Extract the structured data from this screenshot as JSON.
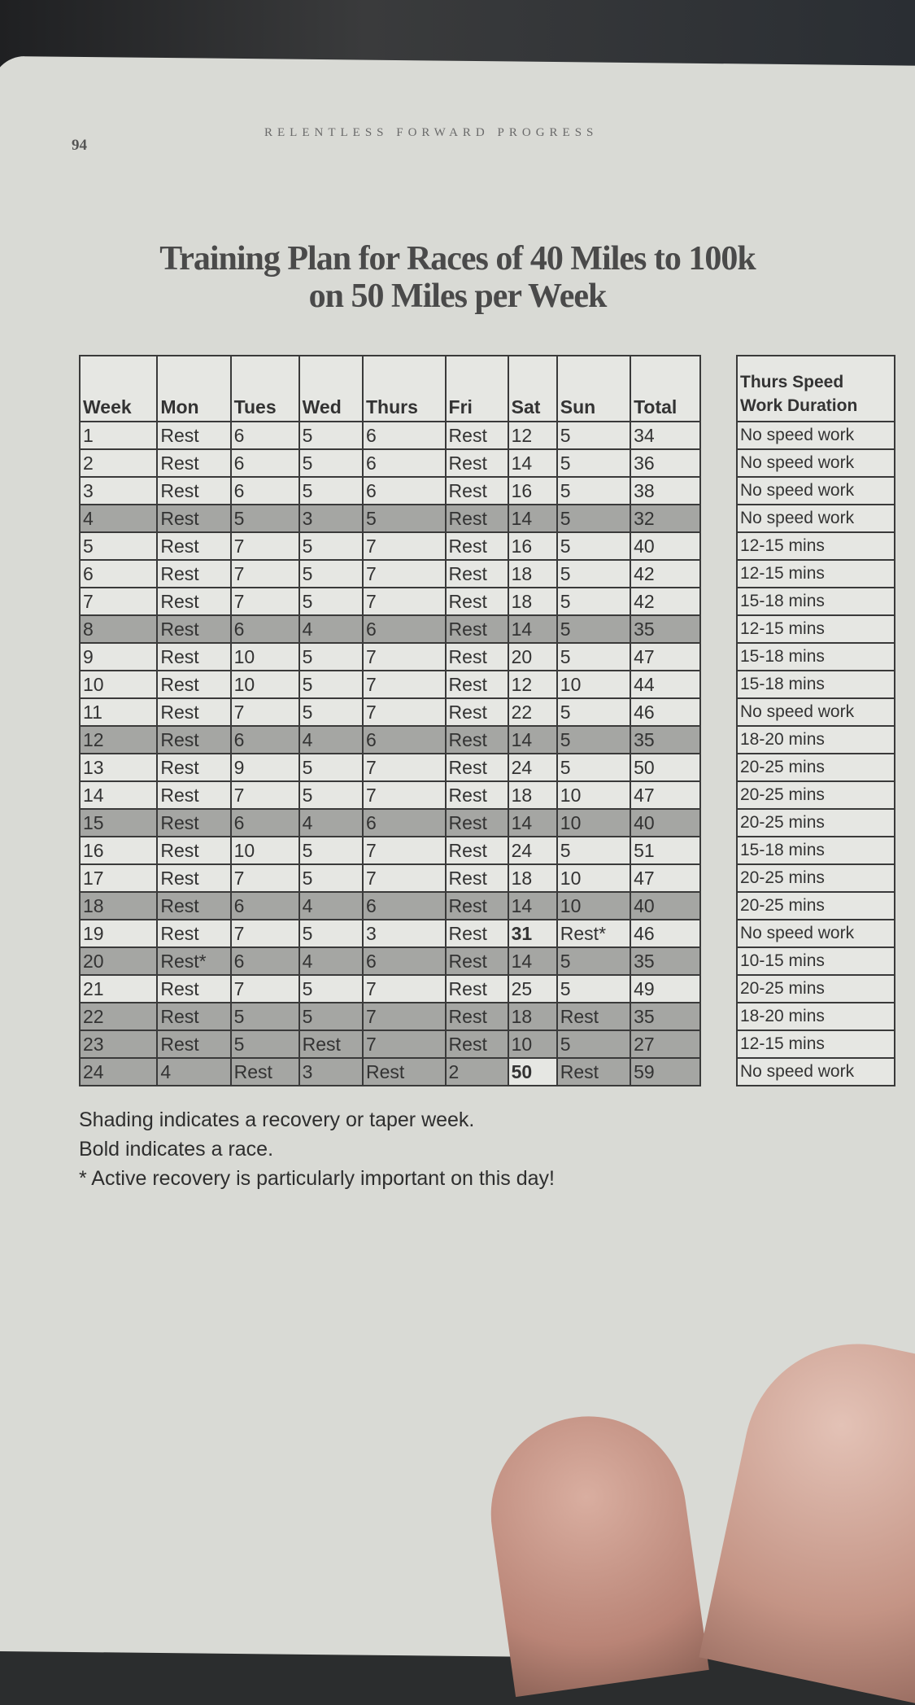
{
  "header": {
    "page_number": "94",
    "running_head": "RELENTLESS FORWARD PROGRESS"
  },
  "title": {
    "line1": "Training Plan for Races of 40 Miles to 100k",
    "line2": "on 50 Miles per Week"
  },
  "plan_table": {
    "columns": [
      "Week",
      "Mon",
      "Tues",
      "Wed",
      "Thurs",
      "Fri",
      "Sat",
      "Sun",
      "Total"
    ],
    "rows": [
      {
        "cells": [
          "1",
          "Rest",
          "6",
          "5",
          "6",
          "Rest",
          "12",
          "5",
          "34"
        ],
        "shaded": false
      },
      {
        "cells": [
          "2",
          "Rest",
          "6",
          "5",
          "6",
          "Rest",
          "14",
          "5",
          "36"
        ],
        "shaded": false
      },
      {
        "cells": [
          "3",
          "Rest",
          "6",
          "5",
          "6",
          "Rest",
          "16",
          "5",
          "38"
        ],
        "shaded": false
      },
      {
        "cells": [
          "4",
          "Rest",
          "5",
          "3",
          "5",
          "Rest",
          "14",
          "5",
          "32"
        ],
        "shaded": true
      },
      {
        "cells": [
          "5",
          "Rest",
          "7",
          "5",
          "7",
          "Rest",
          "16",
          "5",
          "40"
        ],
        "shaded": false
      },
      {
        "cells": [
          "6",
          "Rest",
          "7",
          "5",
          "7",
          "Rest",
          "18",
          "5",
          "42"
        ],
        "shaded": false
      },
      {
        "cells": [
          "7",
          "Rest",
          "7",
          "5",
          "7",
          "Rest",
          "18",
          "5",
          "42"
        ],
        "shaded": false
      },
      {
        "cells": [
          "8",
          "Rest",
          "6",
          "4",
          "6",
          "Rest",
          "14",
          "5",
          "35"
        ],
        "shaded": true
      },
      {
        "cells": [
          "9",
          "Rest",
          "10",
          "5",
          "7",
          "Rest",
          "20",
          "5",
          "47"
        ],
        "shaded": false
      },
      {
        "cells": [
          "10",
          "Rest",
          "10",
          "5",
          "7",
          "Rest",
          "12",
          "10",
          "44"
        ],
        "shaded": false
      },
      {
        "cells": [
          "11",
          "Rest",
          "7",
          "5",
          "7",
          "Rest",
          "22",
          "5",
          "46"
        ],
        "shaded": false
      },
      {
        "cells": [
          "12",
          "Rest",
          "6",
          "4",
          "6",
          "Rest",
          "14",
          "5",
          "35"
        ],
        "shaded": true
      },
      {
        "cells": [
          "13",
          "Rest",
          "9",
          "5",
          "7",
          "Rest",
          "24",
          "5",
          "50"
        ],
        "shaded": false
      },
      {
        "cells": [
          "14",
          "Rest",
          "7",
          "5",
          "7",
          "Rest",
          "18",
          "10",
          "47"
        ],
        "shaded": false
      },
      {
        "cells": [
          "15",
          "Rest",
          "6",
          "4",
          "6",
          "Rest",
          "14",
          "10",
          "40"
        ],
        "shaded": true
      },
      {
        "cells": [
          "16",
          "Rest",
          "10",
          "5",
          "7",
          "Rest",
          "24",
          "5",
          "51"
        ],
        "shaded": false
      },
      {
        "cells": [
          "17",
          "Rest",
          "7",
          "5",
          "7",
          "Rest",
          "18",
          "10",
          "47"
        ],
        "shaded": false
      },
      {
        "cells": [
          "18",
          "Rest",
          "6",
          "4",
          "6",
          "Rest",
          "14",
          "10",
          "40"
        ],
        "shaded": true
      },
      {
        "cells": [
          "19",
          "Rest",
          "7",
          "5",
          "3",
          "Rest",
          "31",
          "Rest*",
          "46"
        ],
        "shaded": false,
        "bold_col": 6
      },
      {
        "cells": [
          "20",
          "Rest*",
          "6",
          "4",
          "6",
          "Rest",
          "14",
          "5",
          "35"
        ],
        "shaded": true
      },
      {
        "cells": [
          "21",
          "Rest",
          "7",
          "5",
          "7",
          "Rest",
          "25",
          "5",
          "49"
        ],
        "shaded": false
      },
      {
        "cells": [
          "22",
          "Rest",
          "5",
          "5",
          "7",
          "Rest",
          "18",
          "Rest",
          "35"
        ],
        "shaded": true
      },
      {
        "cells": [
          "23",
          "Rest",
          "5",
          "Rest",
          "7",
          "Rest",
          "10",
          "5",
          "27"
        ],
        "shaded": true
      },
      {
        "cells": [
          "24",
          "4",
          "Rest",
          "3",
          "Rest",
          "2",
          "50",
          "Rest",
          "59"
        ],
        "shaded": true,
        "bold_col": 6
      }
    ]
  },
  "speed_table": {
    "header_line1": "Thurs Speed",
    "header_line2": "Work Duration",
    "rows": [
      "No speed work",
      "No speed work",
      "No speed work",
      "No speed work",
      "12-15 mins",
      "12-15 mins",
      "15-18 mins",
      "12-15 mins",
      "15-18 mins",
      "15-18 mins",
      "No speed work",
      "18-20 mins",
      "20-25 mins",
      "20-25 mins",
      "20-25 mins",
      "15-18 mins",
      "20-25 mins",
      "20-25 mins",
      "No speed work",
      "10-15 mins",
      "20-25 mins",
      "18-20 mins",
      "12-15 mins",
      "No speed work"
    ]
  },
  "notes": [
    "Shading indicates a recovery or taper week.",
    "Bold indicates a race.",
    "* Active recovery is particularly important on this day!"
  ],
  "colors": {
    "page": "#d9dad5",
    "shade": "#a5a6a3",
    "text": "#333333"
  }
}
